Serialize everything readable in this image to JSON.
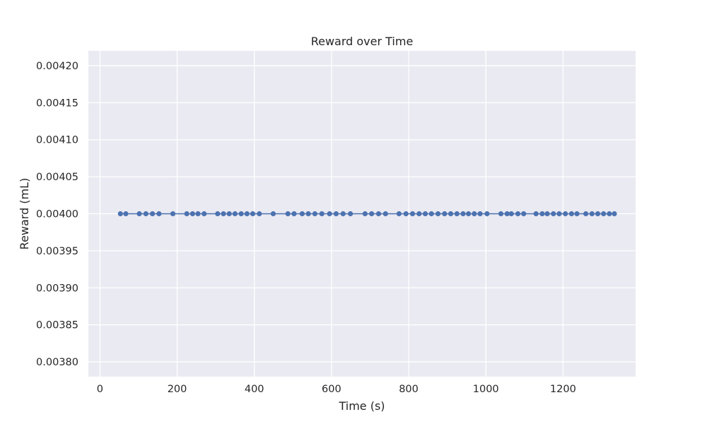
{
  "chart_data": {
    "type": "line",
    "title": "Reward over Time",
    "xlabel": "Time (s)",
    "ylabel": "Reward (mL)",
    "xlim": [
      -30,
      1388
    ],
    "ylim": [
      0.00378,
      0.00422
    ],
    "xticks": [
      "0",
      "200",
      "400",
      "600",
      "800",
      "1000",
      "1200"
    ],
    "xtick_values": [
      0,
      200,
      400,
      600,
      800,
      1000,
      1200
    ],
    "yticks": [
      "0.00380",
      "0.00385",
      "0.00390",
      "0.00395",
      "0.00400",
      "0.00405",
      "0.00410",
      "0.00415",
      "0.00420"
    ],
    "ytick_values": [
      0.0038,
      0.00385,
      0.0039,
      0.00395,
      0.004,
      0.00405,
      0.0041,
      0.00415,
      0.0042
    ],
    "grid": true,
    "colors": {
      "background": "#eaeaf2",
      "grid": "#ffffff",
      "series": "#4c72b0"
    },
    "series": [
      {
        "x": [
          53,
          67,
          102,
          119,
          136,
          153,
          189,
          225,
          240,
          254,
          270,
          305,
          320,
          335,
          350,
          366,
          381,
          396,
          413,
          449,
          487,
          503,
          524,
          540,
          557,
          575,
          595,
          612,
          630,
          649,
          687,
          704,
          722,
          740,
          775,
          793,
          810,
          827,
          843,
          859,
          876,
          893,
          909,
          925,
          941,
          955,
          970,
          985,
          1003,
          1039,
          1055,
          1066,
          1083,
          1098,
          1130,
          1146,
          1159,
          1175,
          1190,
          1206,
          1222,
          1236,
          1259,
          1275,
          1290,
          1305,
          1320,
          1333
        ],
        "y": [
          0.004,
          0.004,
          0.004,
          0.004,
          0.004,
          0.004,
          0.004,
          0.004,
          0.004,
          0.004,
          0.004,
          0.004,
          0.004,
          0.004,
          0.004,
          0.004,
          0.004,
          0.004,
          0.004,
          0.004,
          0.004,
          0.004,
          0.004,
          0.004,
          0.004,
          0.004,
          0.004,
          0.004,
          0.004,
          0.004,
          0.004,
          0.004,
          0.004,
          0.004,
          0.004,
          0.004,
          0.004,
          0.004,
          0.004,
          0.004,
          0.004,
          0.004,
          0.004,
          0.004,
          0.004,
          0.004,
          0.004,
          0.004,
          0.004,
          0.004,
          0.004,
          0.004,
          0.004,
          0.004,
          0.004,
          0.004,
          0.004,
          0.004,
          0.004,
          0.004,
          0.004,
          0.004,
          0.004,
          0.004,
          0.004,
          0.004,
          0.004,
          0.004
        ]
      }
    ]
  }
}
